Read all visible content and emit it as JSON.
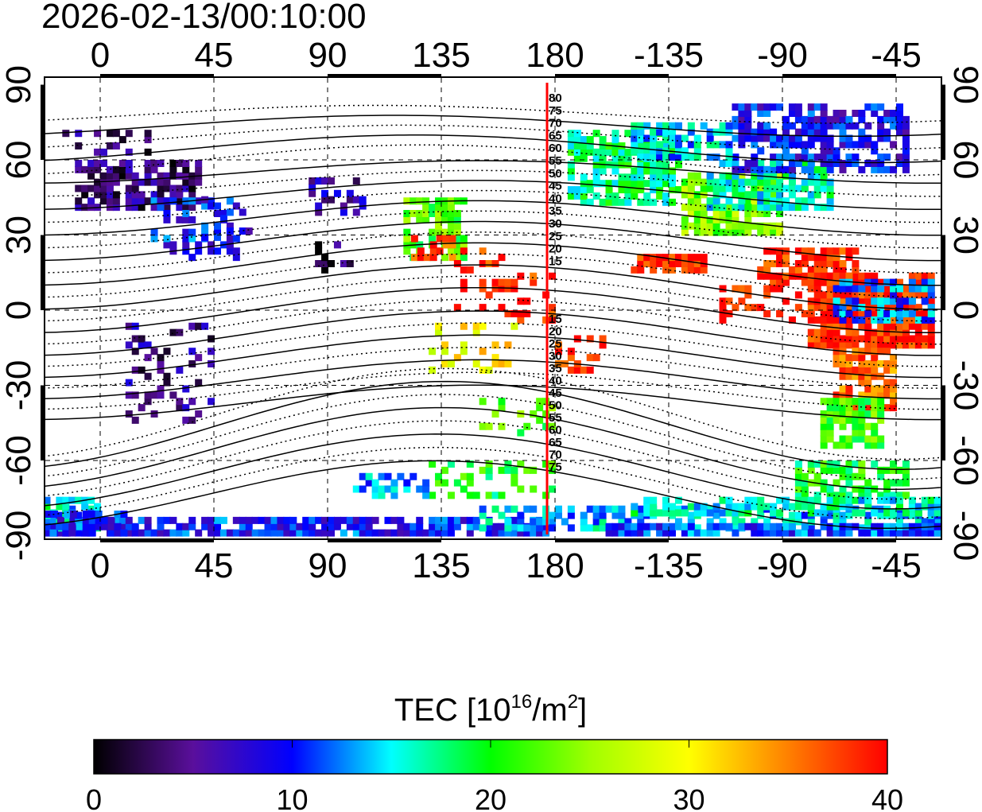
{
  "title": "2026-02-13/00:10:00",
  "map": {
    "top_lon_ticks": [
      "0",
      "45",
      "90",
      "135",
      "180",
      "-135",
      "-90",
      "-45"
    ],
    "bottom_lon_ticks": [
      "0",
      "45",
      "90",
      "135",
      "180",
      "-135",
      "-90",
      "-45"
    ],
    "left_lat_ticks": [
      "90",
      "60",
      "30",
      "0",
      "-30",
      "-60",
      "-90"
    ],
    "right_lat_ticks": [
      "90",
      "60",
      "30",
      "0",
      "-30",
      "-60",
      "-90"
    ],
    "mlat_labels_north": [
      "80",
      "75",
      "70",
      "65",
      "60",
      "55",
      "50",
      "45",
      "40",
      "35",
      "30",
      "25",
      "20",
      "15"
    ],
    "mlat_labels_south": [
      "15",
      "20",
      "25",
      "30",
      "35",
      "40",
      "45",
      "50",
      "55",
      "60",
      "65",
      "70",
      "75"
    ],
    "marker_line_color": "#ff0000"
  },
  "colorbar": {
    "label_main": "TEC  [10",
    "label_exp1": "16",
    "label_mid": "/m",
    "label_exp2": "2",
    "label_end": "]",
    "ticks": [
      "0",
      "10",
      "20",
      "30",
      "40"
    ],
    "range": [
      0,
      40
    ],
    "stops": [
      "#000000",
      "#5a0f9c",
      "#0000ff",
      "#00ffff",
      "#00ff00",
      "#a0ff00",
      "#ffff00",
      "#ff8000",
      "#ff0000"
    ]
  }
}
